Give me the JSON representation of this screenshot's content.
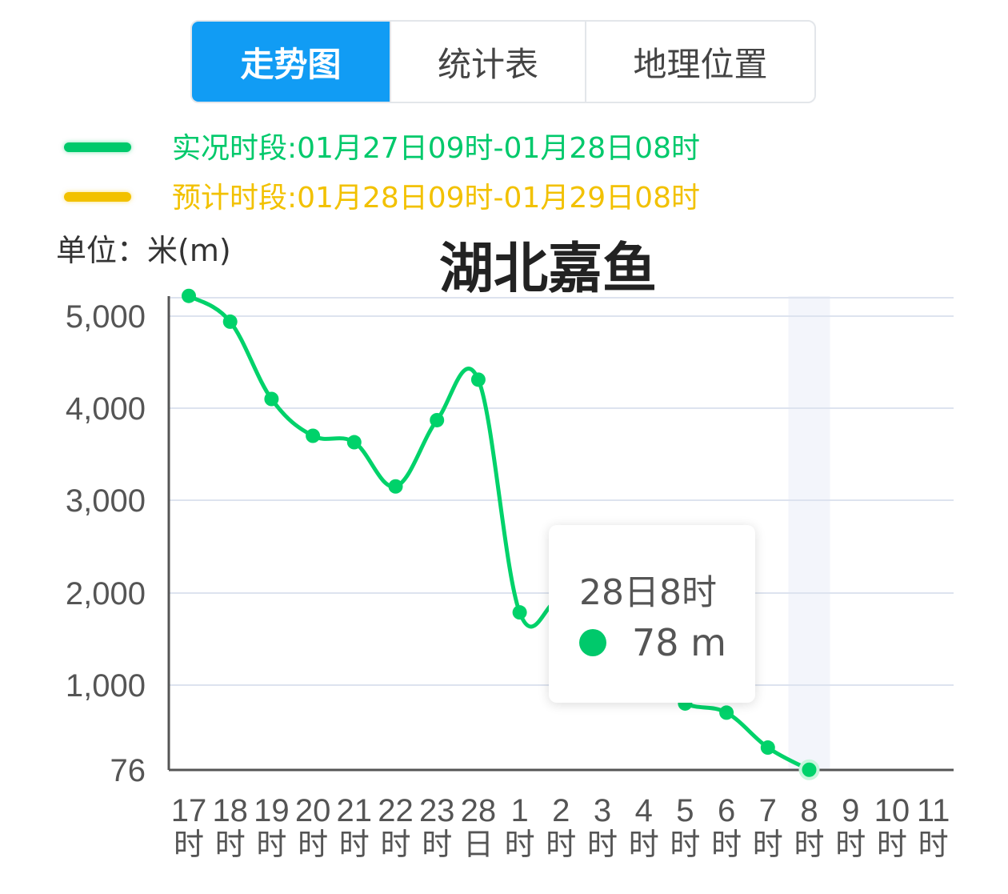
{
  "tabs": [
    {
      "label": "走势图",
      "active": true
    },
    {
      "label": "统计表",
      "active": false
    },
    {
      "label": "地理位置",
      "active": false
    }
  ],
  "legend": [
    {
      "text": "实况时段:01月27日09时-01月28日08时",
      "color": "#00c96b"
    },
    {
      "text": "预计时段:01月28日09时-01月29日08时",
      "color": "#f2c100"
    }
  ],
  "unit_label": "单位：米(m)",
  "tooltip": {
    "time": "28日8时",
    "value": "78 m",
    "color": "#00c96b"
  },
  "chart_data": {
    "type": "line",
    "title": "湖北嘉鱼",
    "ylabel": "单位：米(m)",
    "y_tick_labels": [
      "76",
      "1,000",
      "2,000",
      "3,000",
      "4,000",
      "5,000"
    ],
    "y_tick_values": [
      76,
      1000,
      2000,
      3000,
      4000,
      5000
    ],
    "ylim": [
      76,
      5200
    ],
    "x_tick_labels": [
      [
        "17",
        "时"
      ],
      [
        "18",
        "时"
      ],
      [
        "19",
        "时"
      ],
      [
        "20",
        "时"
      ],
      [
        "21",
        "时"
      ],
      [
        "22",
        "时"
      ],
      [
        "23",
        "时"
      ],
      [
        "28",
        "日"
      ],
      [
        "1",
        "时"
      ],
      [
        "2",
        "时"
      ],
      [
        "3",
        "时"
      ],
      [
        "4",
        "时"
      ],
      [
        "5",
        "时"
      ],
      [
        "6",
        "时"
      ],
      [
        "7",
        "时"
      ],
      [
        "8",
        "时"
      ],
      [
        "9",
        "时"
      ],
      [
        "10",
        "时"
      ],
      [
        "11",
        "时"
      ]
    ],
    "highlight_index": 15,
    "grid": true,
    "series": [
      {
        "name": "实况时段:01月27日09时-01月28日08时",
        "color": "#00d26a",
        "x_index": [
          0,
          1,
          2,
          3,
          4,
          5,
          6,
          7,
          8,
          9,
          10,
          11,
          12,
          13,
          14,
          15
        ],
        "values": [
          5220,
          4940,
          4100,
          3700,
          3630,
          3150,
          3870,
          4310,
          1790,
          1930,
          1600,
          1100,
          800,
          700,
          320,
          78
        ]
      }
    ]
  }
}
